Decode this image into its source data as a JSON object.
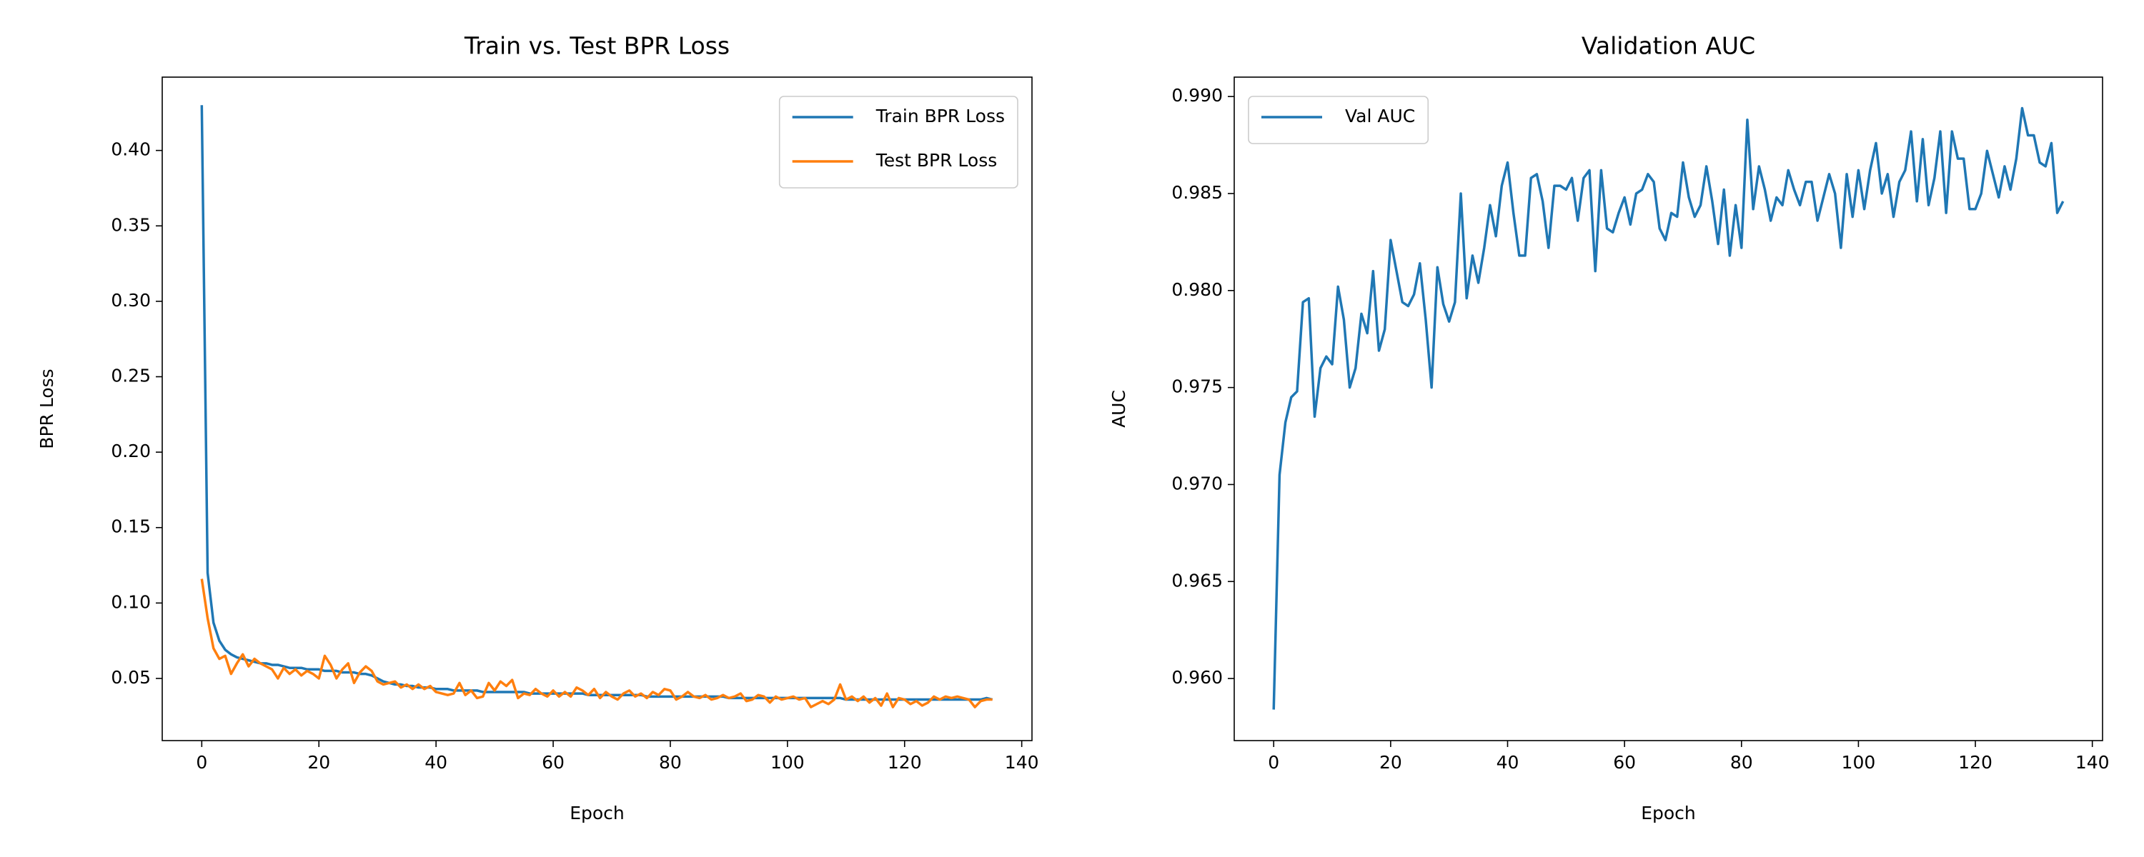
{
  "chart_data": [
    {
      "type": "line",
      "title": "Train vs. Test BPR Loss",
      "xlabel": "Epoch",
      "ylabel": "BPR Loss",
      "x": [
        0,
        1,
        2,
        3,
        4,
        5,
        6,
        7,
        8,
        9,
        10,
        11,
        12,
        13,
        14,
        15,
        16,
        17,
        18,
        19,
        20,
        21,
        22,
        23,
        24,
        25,
        26,
        27,
        28,
        29,
        30,
        31,
        32,
        33,
        34,
        35,
        36,
        37,
        38,
        39,
        40,
        41,
        42,
        43,
        44,
        45,
        46,
        47,
        48,
        49,
        50,
        51,
        52,
        53,
        54,
        55,
        56,
        57,
        58,
        59,
        60,
        61,
        62,
        63,
        64,
        65,
        66,
        67,
        68,
        69,
        70,
        71,
        72,
        73,
        74,
        75,
        76,
        77,
        78,
        79,
        80,
        81,
        82,
        83,
        84,
        85,
        86,
        87,
        88,
        89,
        90,
        91,
        92,
        93,
        94,
        95,
        96,
        97,
        98,
        99,
        100,
        101,
        102,
        103,
        104,
        105,
        106,
        107,
        108,
        109,
        110,
        111,
        112,
        113,
        114,
        115,
        116,
        117,
        118,
        119,
        120,
        121,
        122,
        123,
        124,
        125,
        126,
        127,
        128,
        129,
        130,
        131,
        132,
        133,
        134,
        135
      ],
      "series": [
        {
          "name": "Train BPR Loss",
          "color": "#1f77b4",
          "values": [
            0.43,
            0.12,
            0.087,
            0.075,
            0.069,
            0.066,
            0.064,
            0.063,
            0.062,
            0.061,
            0.06,
            0.06,
            0.059,
            0.059,
            0.058,
            0.057,
            0.057,
            0.057,
            0.056,
            0.056,
            0.056,
            0.055,
            0.055,
            0.055,
            0.054,
            0.054,
            0.054,
            0.053,
            0.053,
            0.052,
            0.05,
            0.048,
            0.047,
            0.046,
            0.046,
            0.045,
            0.045,
            0.044,
            0.044,
            0.044,
            0.043,
            0.043,
            0.043,
            0.042,
            0.042,
            0.042,
            0.042,
            0.042,
            0.041,
            0.041,
            0.041,
            0.041,
            0.041,
            0.041,
            0.041,
            0.041,
            0.04,
            0.04,
            0.04,
            0.04,
            0.04,
            0.04,
            0.04,
            0.04,
            0.04,
            0.04,
            0.039,
            0.039,
            0.039,
            0.039,
            0.039,
            0.039,
            0.039,
            0.039,
            0.039,
            0.039,
            0.038,
            0.038,
            0.038,
            0.038,
            0.038,
            0.038,
            0.038,
            0.038,
            0.038,
            0.038,
            0.038,
            0.038,
            0.038,
            0.038,
            0.037,
            0.037,
            0.037,
            0.037,
            0.037,
            0.037,
            0.037,
            0.037,
            0.037,
            0.037,
            0.037,
            0.037,
            0.037,
            0.037,
            0.037,
            0.037,
            0.037,
            0.037,
            0.037,
            0.037,
            0.036,
            0.036,
            0.036,
            0.036,
            0.036,
            0.036,
            0.036,
            0.036,
            0.036,
            0.036,
            0.036,
            0.036,
            0.036,
            0.036,
            0.036,
            0.036,
            0.036,
            0.036,
            0.036,
            0.036,
            0.036,
            0.036,
            0.036,
            0.036,
            0.037,
            0.036
          ]
        },
        {
          "name": "Test BPR Loss",
          "color": "#ff7f0e",
          "values": [
            0.116,
            0.09,
            0.07,
            0.063,
            0.065,
            0.053,
            0.06,
            0.066,
            0.058,
            0.063,
            0.06,
            0.058,
            0.056,
            0.05,
            0.057,
            0.053,
            0.056,
            0.052,
            0.055,
            0.053,
            0.05,
            0.065,
            0.059,
            0.05,
            0.056,
            0.06,
            0.047,
            0.054,
            0.058,
            0.055,
            0.048,
            0.046,
            0.047,
            0.048,
            0.044,
            0.046,
            0.043,
            0.046,
            0.043,
            0.045,
            0.041,
            0.04,
            0.039,
            0.04,
            0.047,
            0.039,
            0.042,
            0.037,
            0.038,
            0.047,
            0.042,
            0.048,
            0.045,
            0.049,
            0.037,
            0.04,
            0.039,
            0.043,
            0.04,
            0.038,
            0.042,
            0.038,
            0.041,
            0.038,
            0.044,
            0.042,
            0.039,
            0.043,
            0.037,
            0.041,
            0.038,
            0.036,
            0.04,
            0.042,
            0.038,
            0.04,
            0.037,
            0.041,
            0.039,
            0.043,
            0.042,
            0.036,
            0.038,
            0.041,
            0.038,
            0.037,
            0.039,
            0.036,
            0.037,
            0.039,
            0.037,
            0.038,
            0.04,
            0.035,
            0.036,
            0.039,
            0.038,
            0.034,
            0.038,
            0.036,
            0.037,
            0.038,
            0.036,
            0.037,
            0.031,
            0.033,
            0.035,
            0.033,
            0.036,
            0.046,
            0.036,
            0.038,
            0.035,
            0.038,
            0.034,
            0.037,
            0.032,
            0.04,
            0.031,
            0.037,
            0.036,
            0.033,
            0.035,
            0.032,
            0.034,
            0.038,
            0.036,
            0.038,
            0.037,
            0.038,
            0.037,
            0.036,
            0.031,
            0.035,
            0.036,
            0.036
          ]
        }
      ],
      "xlim": [
        -6.75,
        141.75
      ],
      "xticks": [
        0,
        20,
        40,
        60,
        80,
        100,
        120,
        140
      ],
      "ylim": [
        0.0088,
        0.4486
      ],
      "yticks": [
        0.05,
        {
          "value": 0.1,
          "label": "0.10"
        },
        0.15,
        {
          "value": 0.2,
          "label": "0.20"
        },
        0.25,
        {
          "value": 0.3,
          "label": "0.30"
        },
        0.35,
        {
          "value": 0.4,
          "label": "0.40"
        }
      ],
      "legend": "upper right"
    },
    {
      "type": "line",
      "title": "Validation AUC",
      "xlabel": "Epoch",
      "ylabel": "AUC",
      "x": [
        0,
        1,
        2,
        3,
        4,
        5,
        6,
        7,
        8,
        9,
        10,
        11,
        12,
        13,
        14,
        15,
        16,
        17,
        18,
        19,
        20,
        21,
        22,
        23,
        24,
        25,
        26,
        27,
        28,
        29,
        30,
        31,
        32,
        33,
        34,
        35,
        36,
        37,
        38,
        39,
        40,
        41,
        42,
        43,
        44,
        45,
        46,
        47,
        48,
        49,
        50,
        51,
        52,
        53,
        54,
        55,
        56,
        57,
        58,
        59,
        60,
        61,
        62,
        63,
        64,
        65,
        66,
        67,
        68,
        69,
        70,
        71,
        72,
        73,
        74,
        75,
        76,
        77,
        78,
        79,
        80,
        81,
        82,
        83,
        84,
        85,
        86,
        87,
        88,
        89,
        90,
        91,
        92,
        93,
        94,
        95,
        96,
        97,
        98,
        99,
        100,
        101,
        102,
        103,
        104,
        105,
        106,
        107,
        108,
        109,
        110,
        111,
        112,
        113,
        114,
        115,
        116,
        117,
        118,
        119,
        120,
        121,
        122,
        123,
        124,
        125,
        126,
        127,
        128,
        129,
        130,
        131,
        132,
        133,
        134,
        135
      ],
      "series": [
        {
          "name": "Val AUC",
          "color": "#1f77b4",
          "values": [
            0.9584,
            0.9705,
            0.9732,
            0.9745,
            0.9748,
            0.9794,
            0.9796,
            0.9735,
            0.976,
            0.9766,
            0.9762,
            0.9802,
            0.9785,
            0.975,
            0.976,
            0.9788,
            0.9778,
            0.981,
            0.9769,
            0.978,
            0.9826,
            0.981,
            0.9794,
            0.9792,
            0.9798,
            0.9814,
            0.9785,
            0.975,
            0.9812,
            0.9793,
            0.9784,
            0.9794,
            0.985,
            0.9796,
            0.9818,
            0.9804,
            0.9822,
            0.9844,
            0.9828,
            0.9854,
            0.9866,
            0.984,
            0.9818,
            0.9818,
            0.9858,
            0.986,
            0.9846,
            0.9822,
            0.9854,
            0.9854,
            0.9852,
            0.9858,
            0.9836,
            0.9858,
            0.9862,
            0.981,
            0.9862,
            0.9832,
            0.983,
            0.984,
            0.9848,
            0.9834,
            0.985,
            0.9852,
            0.986,
            0.9856,
            0.9832,
            0.9826,
            0.984,
            0.9838,
            0.9866,
            0.9848,
            0.9838,
            0.9844,
            0.9864,
            0.9846,
            0.9824,
            0.9852,
            0.9818,
            0.9844,
            0.9822,
            0.9888,
            0.9842,
            0.9864,
            0.9852,
            0.9836,
            0.9848,
            0.9844,
            0.9862,
            0.9852,
            0.9844,
            0.9856,
            0.9856,
            0.9836,
            0.9848,
            0.986,
            0.985,
            0.9822,
            0.986,
            0.9838,
            0.9862,
            0.9842,
            0.9862,
            0.9876,
            0.985,
            0.986,
            0.9838,
            0.9856,
            0.9862,
            0.9882,
            0.9846,
            0.9878,
            0.9844,
            0.9858,
            0.9882,
            0.984,
            0.9882,
            0.9868,
            0.9868,
            0.9842,
            0.9842,
            0.985,
            0.9872,
            0.986,
            0.9848,
            0.9864,
            0.9852,
            0.9868,
            0.9894,
            0.988,
            0.988,
            0.9866,
            0.9864,
            0.9876,
            0.984,
            0.9846
          ]
        }
      ],
      "xlim": [
        -6.75,
        141.75
      ],
      "xticks": [
        0,
        20,
        40,
        60,
        80,
        100,
        120,
        140
      ],
      "ylim": [
        0.9568,
        0.991
      ],
      "yticks": [
        {
          "value": 0.96,
          "label": "0.960"
        },
        0.965,
        {
          "value": 0.97,
          "label": "0.970"
        },
        0.975,
        {
          "value": 0.98,
          "label": "0.980"
        },
        0.985,
        {
          "value": 0.99,
          "label": "0.990"
        }
      ],
      "legend": "upper left"
    }
  ]
}
